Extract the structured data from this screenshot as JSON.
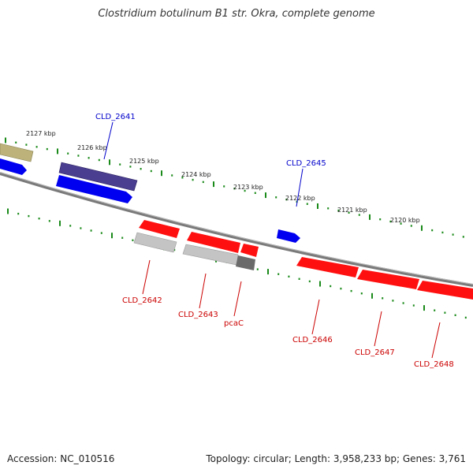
{
  "title": "Clostridium botulinum B1 str. Okra, complete genome",
  "accession": "Accession: NC_010516",
  "topology": "Topology: circular; Length: 3,958,233 bp; Genes: 3,761",
  "colors": {
    "forward_gene": "#0000ff",
    "reverse_gene": "#ff0000",
    "tick": "#1a8a1a",
    "backbone": "#888888",
    "forward_label": "#0000cc",
    "reverse_label": "#cc0000"
  },
  "tick_labels": [
    "2127 kbp",
    "2126 kbp",
    "2125 kbp",
    "2124 kbp",
    "2123 kbp",
    "2122 kbp",
    "2121 kbp",
    "2120 kbp"
  ],
  "gene_labels": {
    "forward": [
      "CLD_2641",
      "CLD_2645"
    ],
    "reverse": [
      "CLD_2642",
      "CLD_2643",
      "pcaC",
      "CLD_2646",
      "CLD_2647",
      "CLD_2648"
    ]
  }
}
